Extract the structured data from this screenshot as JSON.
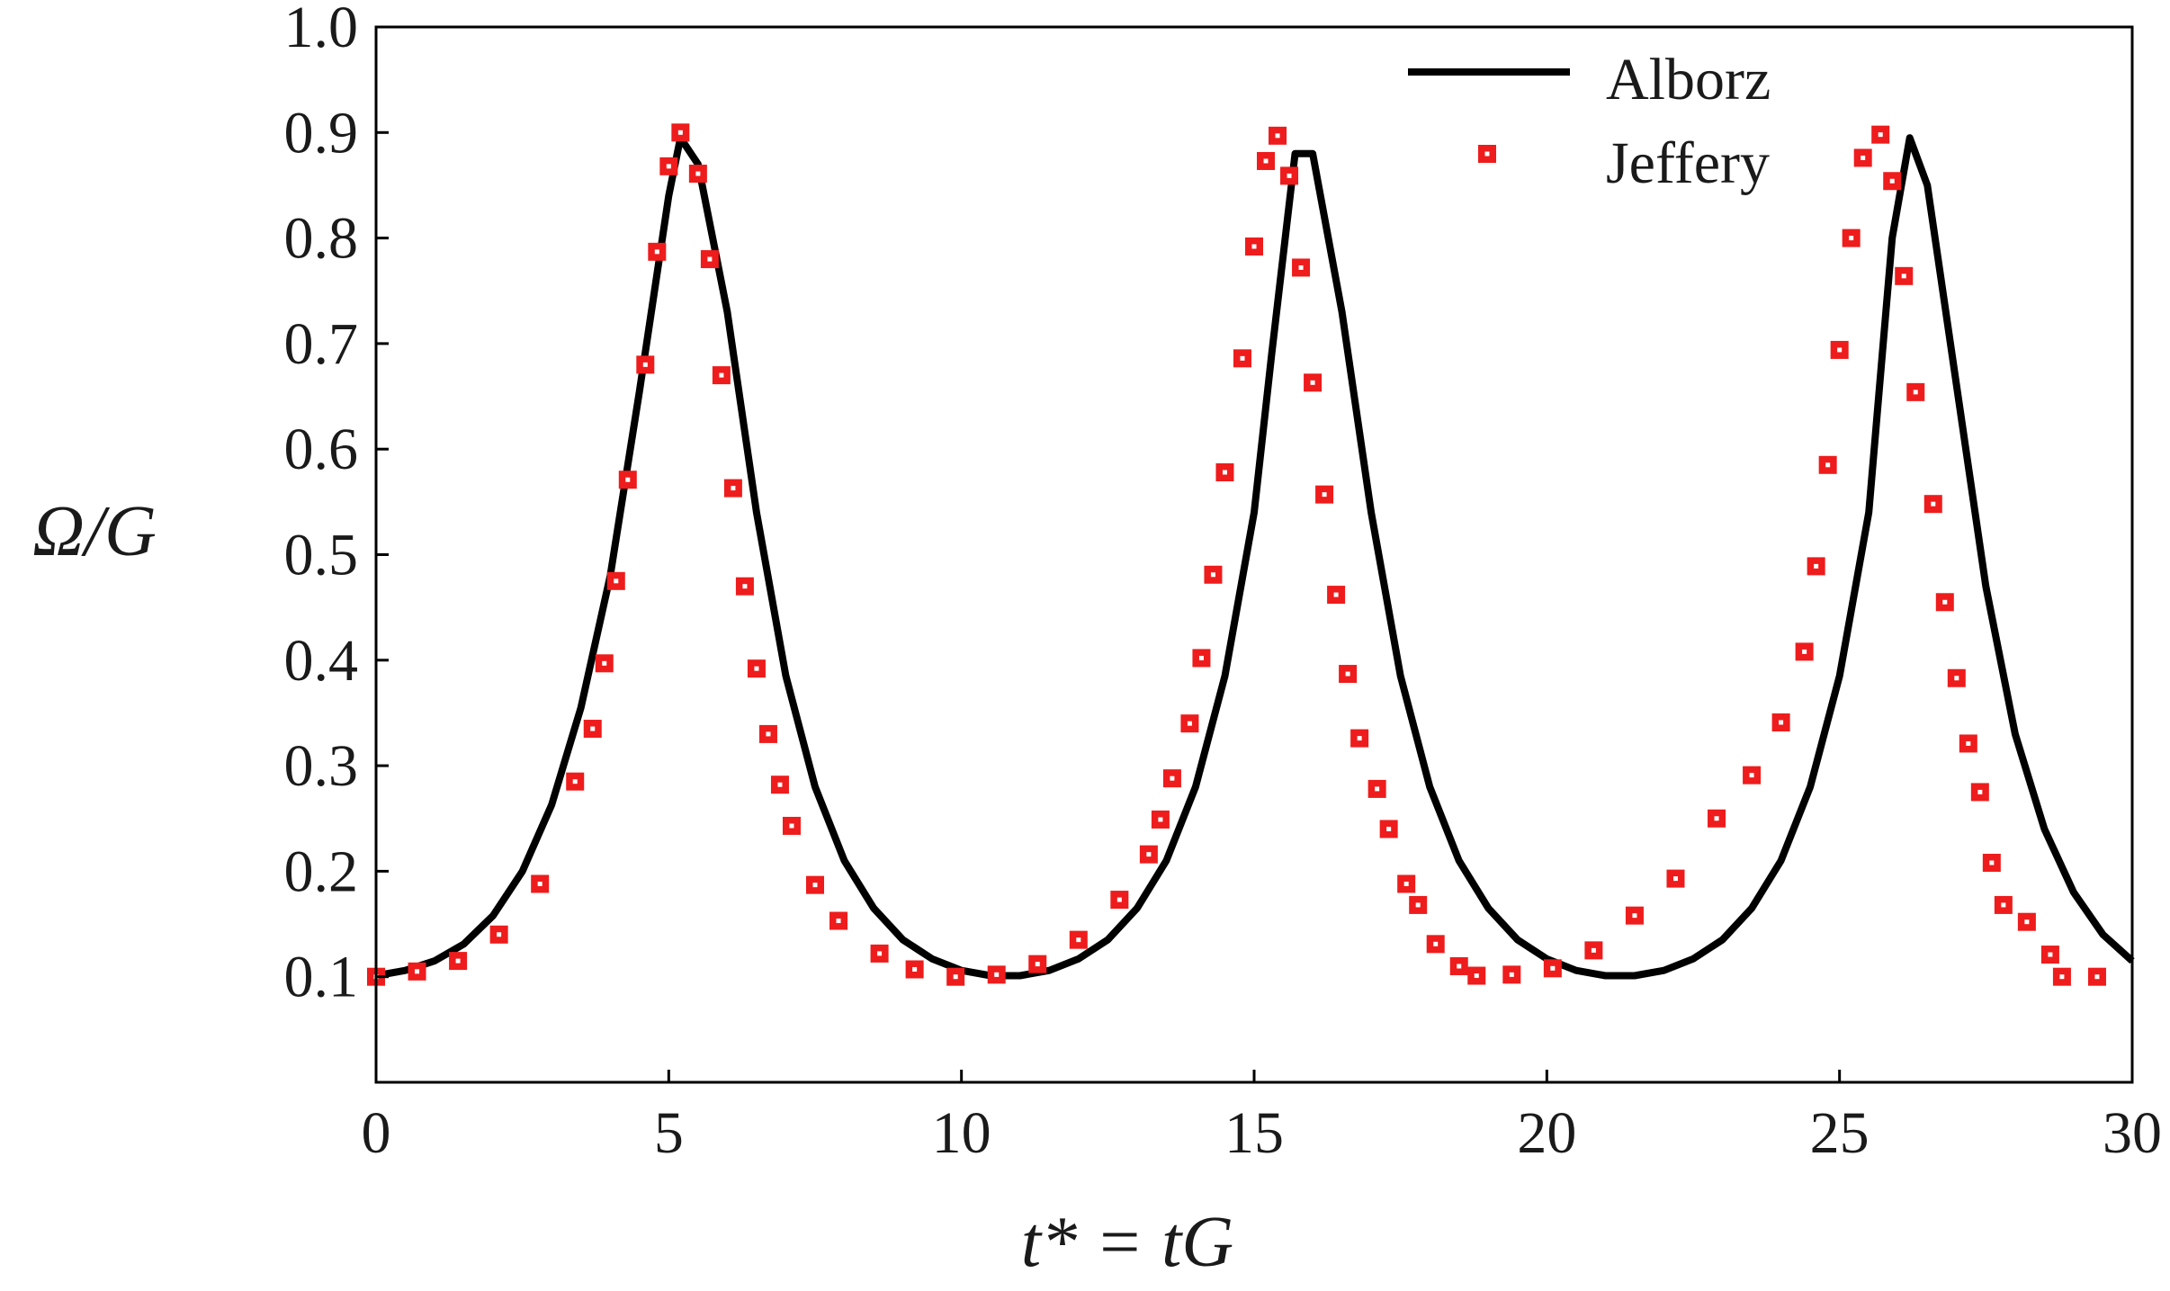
{
  "chart_data": {
    "type": "line",
    "xlabel": "t* = tG",
    "ylabel": "Ω/G",
    "xlim": [
      0,
      30
    ],
    "ylim": [
      0,
      1.0
    ],
    "x_ticks": [
      "0",
      "5",
      "10",
      "15",
      "20",
      "25",
      "30"
    ],
    "y_ticks": [
      "0.1",
      "0.2",
      "0.3",
      "0.4",
      "0.5",
      "0.6",
      "0.7",
      "0.8",
      "0.9",
      "1.0"
    ],
    "grid": false,
    "legend_position": "top-right",
    "series": [
      {
        "name": "Alborz",
        "style": "line",
        "color": "#000000",
        "x": [
          0.0,
          0.5,
          1.0,
          1.5,
          2.0,
          2.5,
          3.0,
          3.5,
          4.0,
          4.5,
          5.0,
          5.2,
          5.5,
          6.0,
          6.5,
          7.0,
          7.5,
          8.0,
          8.5,
          9.0,
          9.5,
          10.0,
          10.5,
          11.0,
          11.5,
          12.0,
          12.5,
          13.0,
          13.5,
          14.0,
          14.5,
          15.0,
          15.3,
          15.7,
          16.0,
          16.5,
          17.0,
          17.5,
          18.0,
          18.5,
          19.0,
          19.5,
          20.0,
          20.5,
          21.0,
          21.5,
          22.0,
          22.5,
          23.0,
          23.5,
          24.0,
          24.5,
          25.0,
          25.5,
          25.9,
          26.2,
          26.5,
          27.0,
          27.5,
          28.0,
          28.5,
          29.0,
          29.5,
          30.0
        ],
        "y": [
          0.101,
          0.106,
          0.115,
          0.131,
          0.158,
          0.2,
          0.263,
          0.355,
          0.48,
          0.655,
          0.84,
          0.895,
          0.87,
          0.73,
          0.54,
          0.385,
          0.28,
          0.21,
          0.165,
          0.135,
          0.117,
          0.106,
          0.101,
          0.101,
          0.106,
          0.117,
          0.135,
          0.165,
          0.21,
          0.28,
          0.385,
          0.54,
          0.69,
          0.88,
          0.88,
          0.73,
          0.54,
          0.385,
          0.28,
          0.21,
          0.165,
          0.135,
          0.117,
          0.106,
          0.101,
          0.101,
          0.106,
          0.117,
          0.135,
          0.165,
          0.21,
          0.28,
          0.385,
          0.54,
          0.8,
          0.895,
          0.85,
          0.66,
          0.47,
          0.33,
          0.24,
          0.18,
          0.14,
          0.115
        ]
      },
      {
        "name": "Jeffery",
        "style": "markers",
        "color": "#ee1c1c",
        "x": [
          0.0,
          0.7,
          1.4,
          2.1,
          2.8,
          3.4,
          3.7,
          3.9,
          4.1,
          4.3,
          4.6,
          4.8,
          5.0,
          5.2,
          5.5,
          5.7,
          5.9,
          6.1,
          6.3,
          6.5,
          6.7,
          6.9,
          7.1,
          7.5,
          7.9,
          8.6,
          9.2,
          9.9,
          10.6,
          11.3,
          12.0,
          12.7,
          13.2,
          13.4,
          13.6,
          13.9,
          14.1,
          14.3,
          14.5,
          14.8,
          15.0,
          15.2,
          15.4,
          15.6,
          15.8,
          16.0,
          16.2,
          16.4,
          16.6,
          16.8,
          17.1,
          17.3,
          17.6,
          17.8,
          18.1,
          18.5,
          18.8,
          19.4,
          20.1,
          20.8,
          21.5,
          22.2,
          22.9,
          23.5,
          24.0,
          24.4,
          24.6,
          24.8,
          25.0,
          25.2,
          25.4,
          25.7,
          25.9,
          26.1,
          26.3,
          26.6,
          26.8,
          27.0,
          27.2,
          27.4,
          27.6,
          27.8,
          28.2,
          28.6,
          28.8,
          29.4
        ],
        "y": [
          0.1,
          0.105,
          0.115,
          0.14,
          0.188,
          0.285,
          0.335,
          0.397,
          0.475,
          0.571,
          0.68,
          0.787,
          0.868,
          0.9,
          0.861,
          0.78,
          0.67,
          0.563,
          0.47,
          0.392,
          0.33,
          0.282,
          0.243,
          0.187,
          0.153,
          0.122,
          0.107,
          0.1,
          0.102,
          0.112,
          0.135,
          0.173,
          0.216,
          0.249,
          0.288,
          0.34,
          0.402,
          0.481,
          0.578,
          0.686,
          0.792,
          0.873,
          0.897,
          0.859,
          0.772,
          0.663,
          0.557,
          0.462,
          0.387,
          0.326,
          0.278,
          0.24,
          0.188,
          0.168,
          0.131,
          0.11,
          0.101,
          0.102,
          0.108,
          0.125,
          0.158,
          0.193,
          0.25,
          0.291,
          0.341,
          0.408,
          0.489,
          0.585,
          0.694,
          0.8,
          0.876,
          0.898,
          0.854,
          0.764,
          0.654,
          0.548,
          0.455,
          0.383,
          0.321,
          0.275,
          0.208,
          0.168,
          0.152,
          0.121,
          0.1,
          0.1
        ]
      }
    ]
  }
}
